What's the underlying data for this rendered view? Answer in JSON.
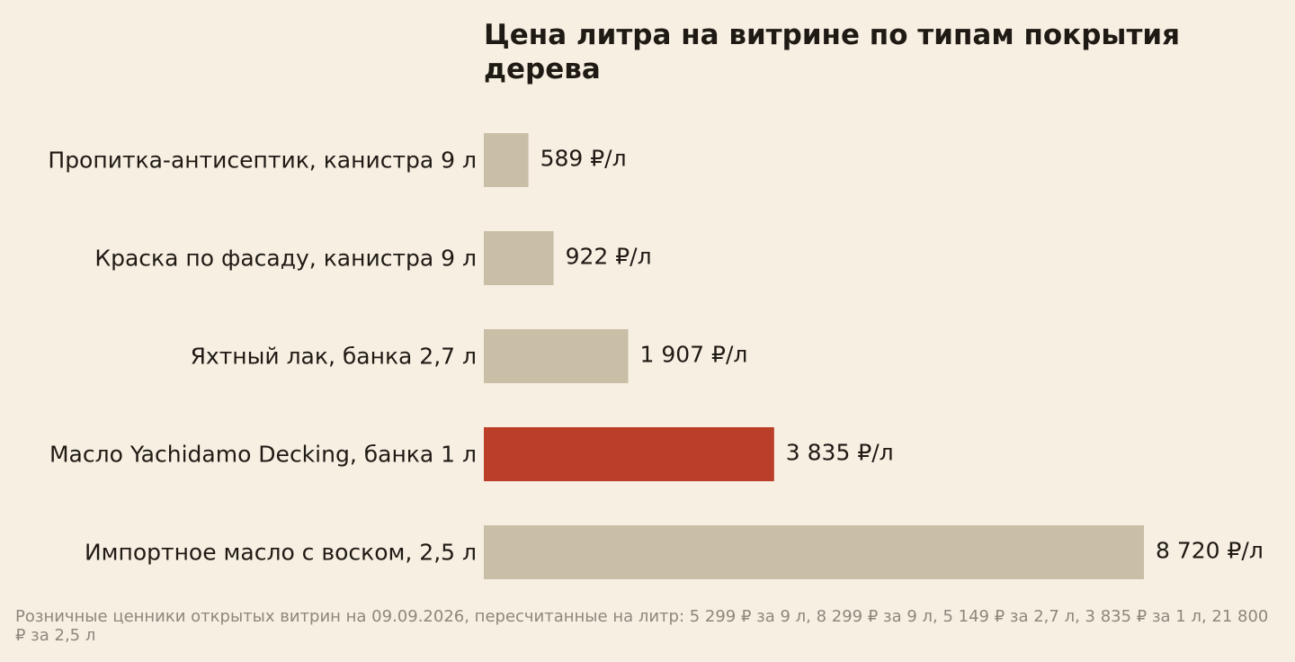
{
  "chart_data": {
    "type": "bar",
    "orientation": "horizontal",
    "title": "Цена литра на витрине по типам покрытия дерева",
    "categories": [
      "Пропитка-антисептик, канистра 9 л",
      "Краска по фасаду, канистра 9 л",
      "Яхтный лак, банка 2,7 л",
      "Масло Yachidamo Decking, банка 1 л",
      "Импортное масло с воском, 2,5 л"
    ],
    "values": [
      589,
      922,
      1907,
      3835,
      8720
    ],
    "value_labels": [
      "589 ₽/л",
      "922 ₽/л",
      "1 907 ₽/л",
      "3 835 ₽/л",
      "8 720 ₽/л"
    ],
    "highlight_index": 3,
    "xlim": [
      0,
      8720
    ],
    "grid": false,
    "legend": "none",
    "colors": {
      "bar": "#c9bfa6",
      "highlight": "#bb3e28",
      "background": "#f6efe2",
      "text": "#1f1a14",
      "note": "#8e877d"
    },
    "note": "Розничные ценники открытых витрин на 09.09.2026, пересчитанные на литр: 5 299 ₽ за 9 л, 8 299 ₽ за 9 л, 5 149 ₽ за 2,7 л, 3 835 ₽ за 1 л, 21 800 ₽ за 2,5 л"
  }
}
